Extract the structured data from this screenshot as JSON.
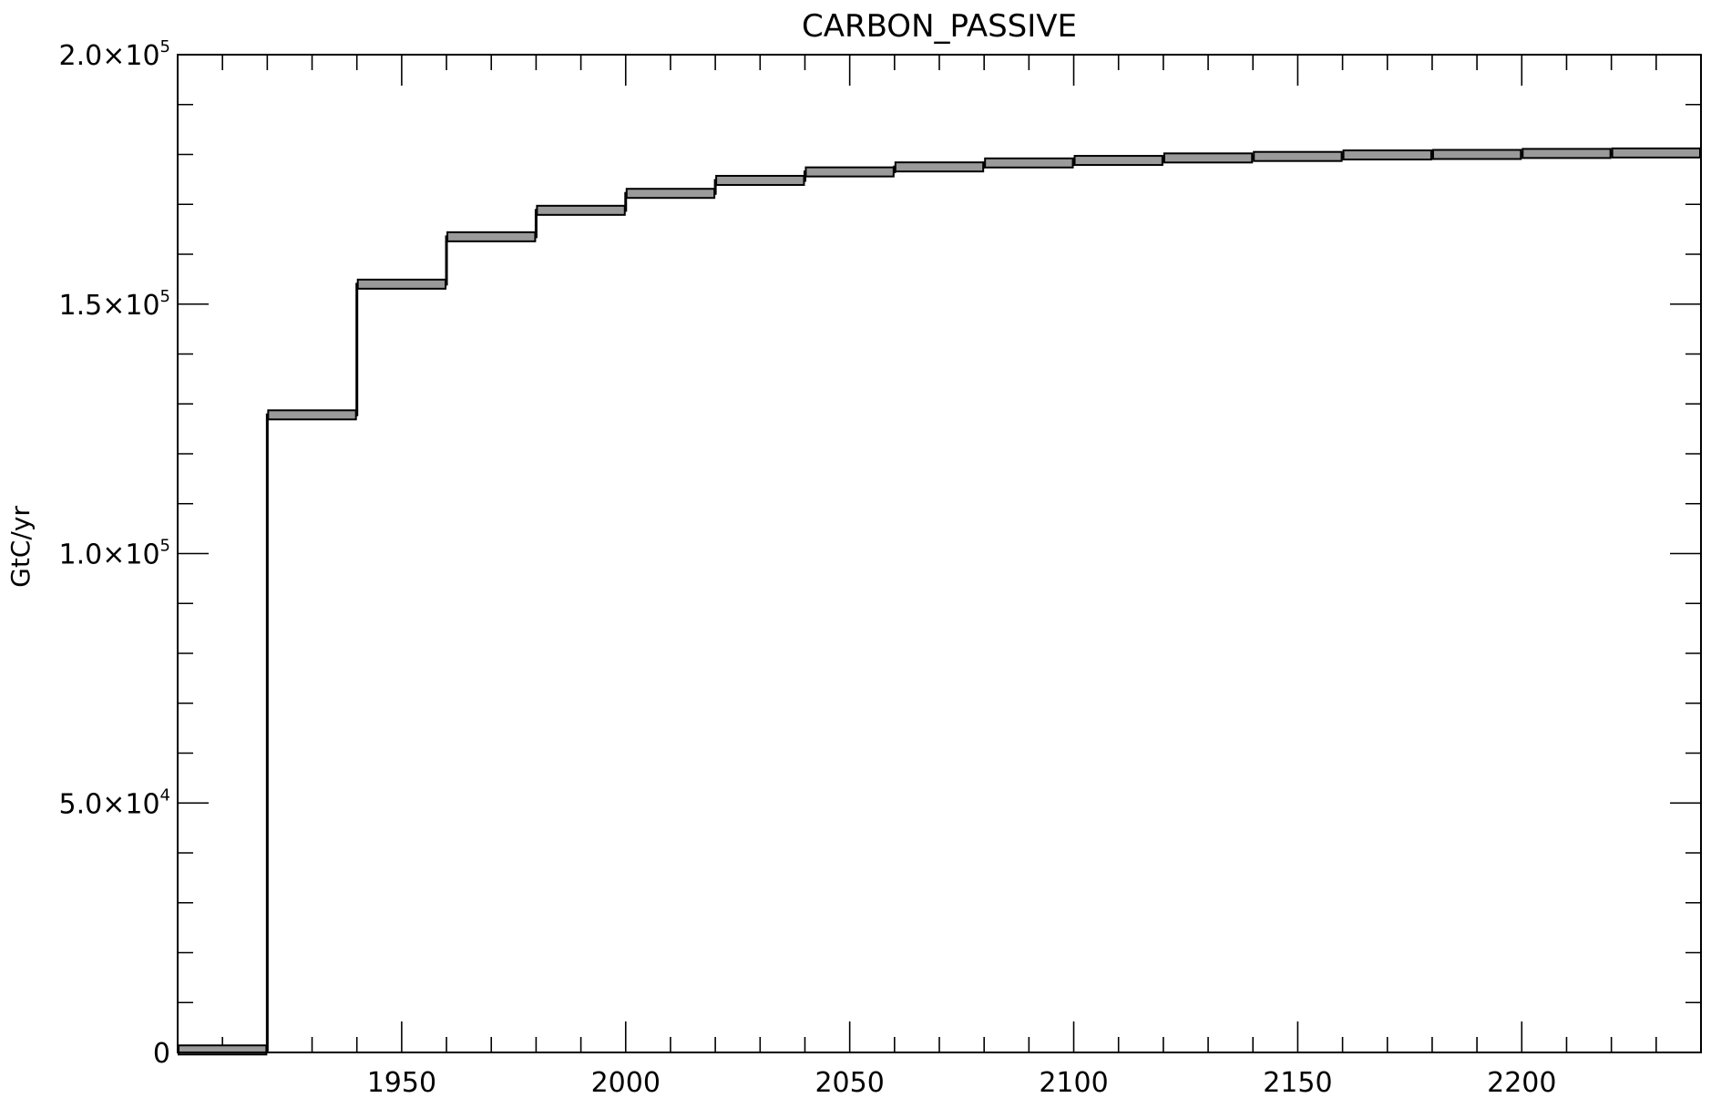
{
  "chart_data": {
    "type": "line",
    "title": "CARBON_PASSIVE",
    "xlabel": "",
    "ylabel": "GtC/yr",
    "xlim": [
      1900,
      2240
    ],
    "ylim": [
      0,
      200000
    ],
    "x_ticks": [
      1950,
      2000,
      2050,
      2100,
      2150,
      2200
    ],
    "x_minor_step": 10,
    "y_ticks": [
      {
        "value": 0,
        "mantissa": "0",
        "exponent": ""
      },
      {
        "value": 50000,
        "mantissa": "5.0×10",
        "exponent": "4"
      },
      {
        "value": 100000,
        "mantissa": "1.0×10",
        "exponent": "5"
      },
      {
        "value": 150000,
        "mantissa": "1.5×10",
        "exponent": "5"
      },
      {
        "value": 200000,
        "mantissa": "2.0×10",
        "exponent": "5"
      }
    ],
    "y_minor_step": 10000,
    "grid": false,
    "legend": "none",
    "line_color": "#000000",
    "band_color": "#9a9a9a",
    "steps": [
      {
        "x0": 1900,
        "x1": 1920,
        "y": 500
      },
      {
        "x0": 1920,
        "x1": 1940,
        "y": 127800
      },
      {
        "x0": 1940,
        "x1": 1960,
        "y": 154000
      },
      {
        "x0": 1960,
        "x1": 1980,
        "y": 163500
      },
      {
        "x0": 1980,
        "x1": 2000,
        "y": 168800
      },
      {
        "x0": 2000,
        "x1": 2020,
        "y": 172200
      },
      {
        "x0": 2020,
        "x1": 2040,
        "y": 174800
      },
      {
        "x0": 2040,
        "x1": 2060,
        "y": 176500
      },
      {
        "x0": 2060,
        "x1": 2080,
        "y": 177500
      },
      {
        "x0": 2080,
        "x1": 2100,
        "y": 178300
      },
      {
        "x0": 2100,
        "x1": 2120,
        "y": 178800
      },
      {
        "x0": 2120,
        "x1": 2140,
        "y": 179300
      },
      {
        "x0": 2140,
        "x1": 2160,
        "y": 179600
      },
      {
        "x0": 2160,
        "x1": 2180,
        "y": 179900
      },
      {
        "x0": 2180,
        "x1": 2200,
        "y": 180000
      },
      {
        "x0": 2200,
        "x1": 2220,
        "y": 180200
      },
      {
        "x0": 2220,
        "x1": 2240,
        "y": 180300
      }
    ]
  }
}
